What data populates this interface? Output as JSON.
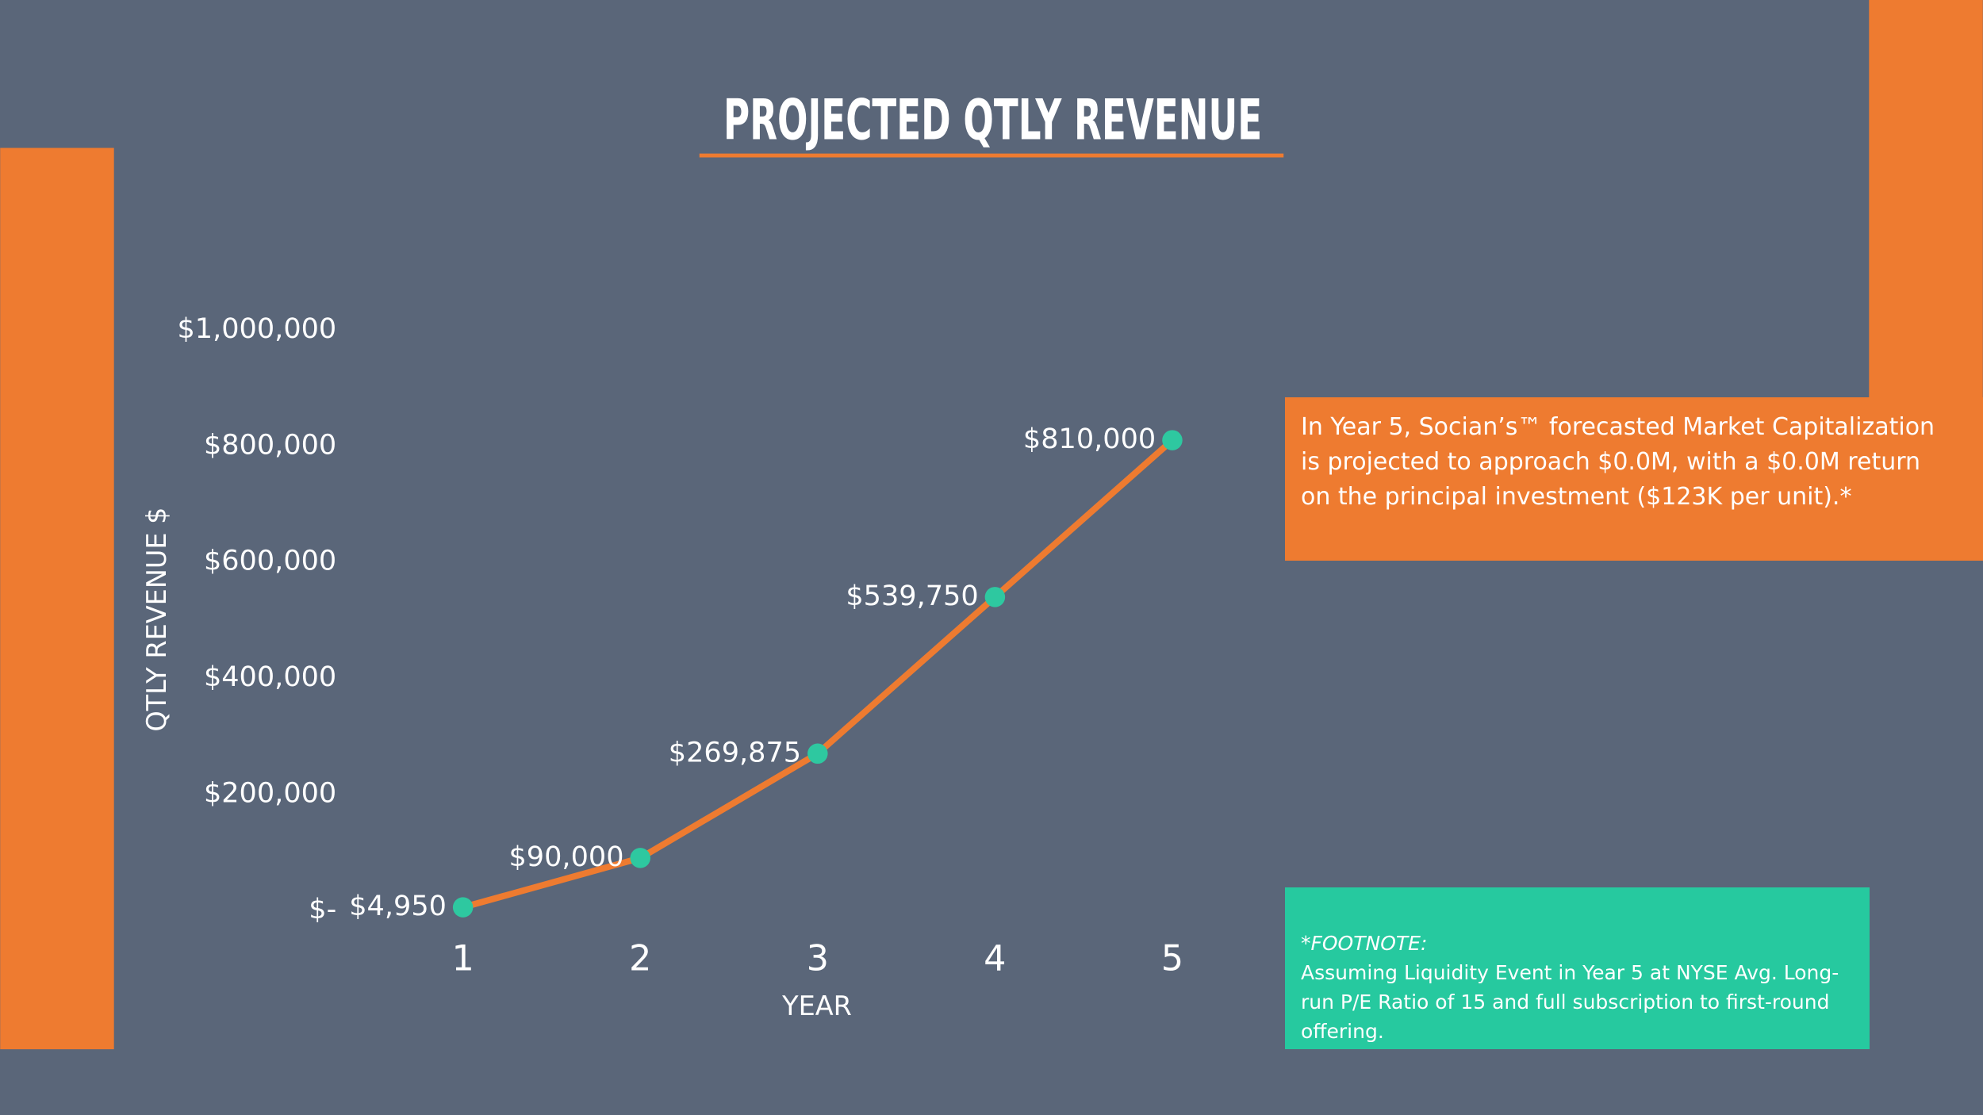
{
  "chart_data": {
    "type": "line",
    "title": "PROJECTED QTLY REVENUE",
    "x_label": "YEAR",
    "y_label": "QTLY REVENUE $",
    "categories": [
      "1",
      "2",
      "3",
      "4",
      "5"
    ],
    "values": [
      4950,
      90000,
      269875,
      539750,
      810000
    ],
    "value_labels": [
      "$4,950",
      "$90,000",
      "$269,875",
      "$539,750",
      "$810,000"
    ],
    "color": "#ee7b30",
    "marker_color": "#2ec8a0",
    "ylim": [
      0,
      1000000
    ],
    "yticks": [
      {
        "value": 0,
        "label": "$-"
      },
      {
        "value": 200000,
        "label": "$200,000"
      },
      {
        "value": 400000,
        "label": "$400,000"
      },
      {
        "value": 600000,
        "label": "$600,000"
      },
      {
        "value": 800000,
        "label": "$800,000"
      },
      {
        "value": 1000000,
        "label": "$1,000,000"
      }
    ],
    "grid": false,
    "annotations": {
      "callout": "In Year 5, Socian’s™ forecasted Market Capitalization is projected to approach $0.0M, with a $0.0M return on the principal investment ($123K per unit).*",
      "footnote_title": "*FOOTNOTE:",
      "footnote_text": "Assuming Liquidity Event in Year 5 at NYSE Avg. Long-run P/E Ratio of 15 and full subscription to first-round offering."
    }
  }
}
